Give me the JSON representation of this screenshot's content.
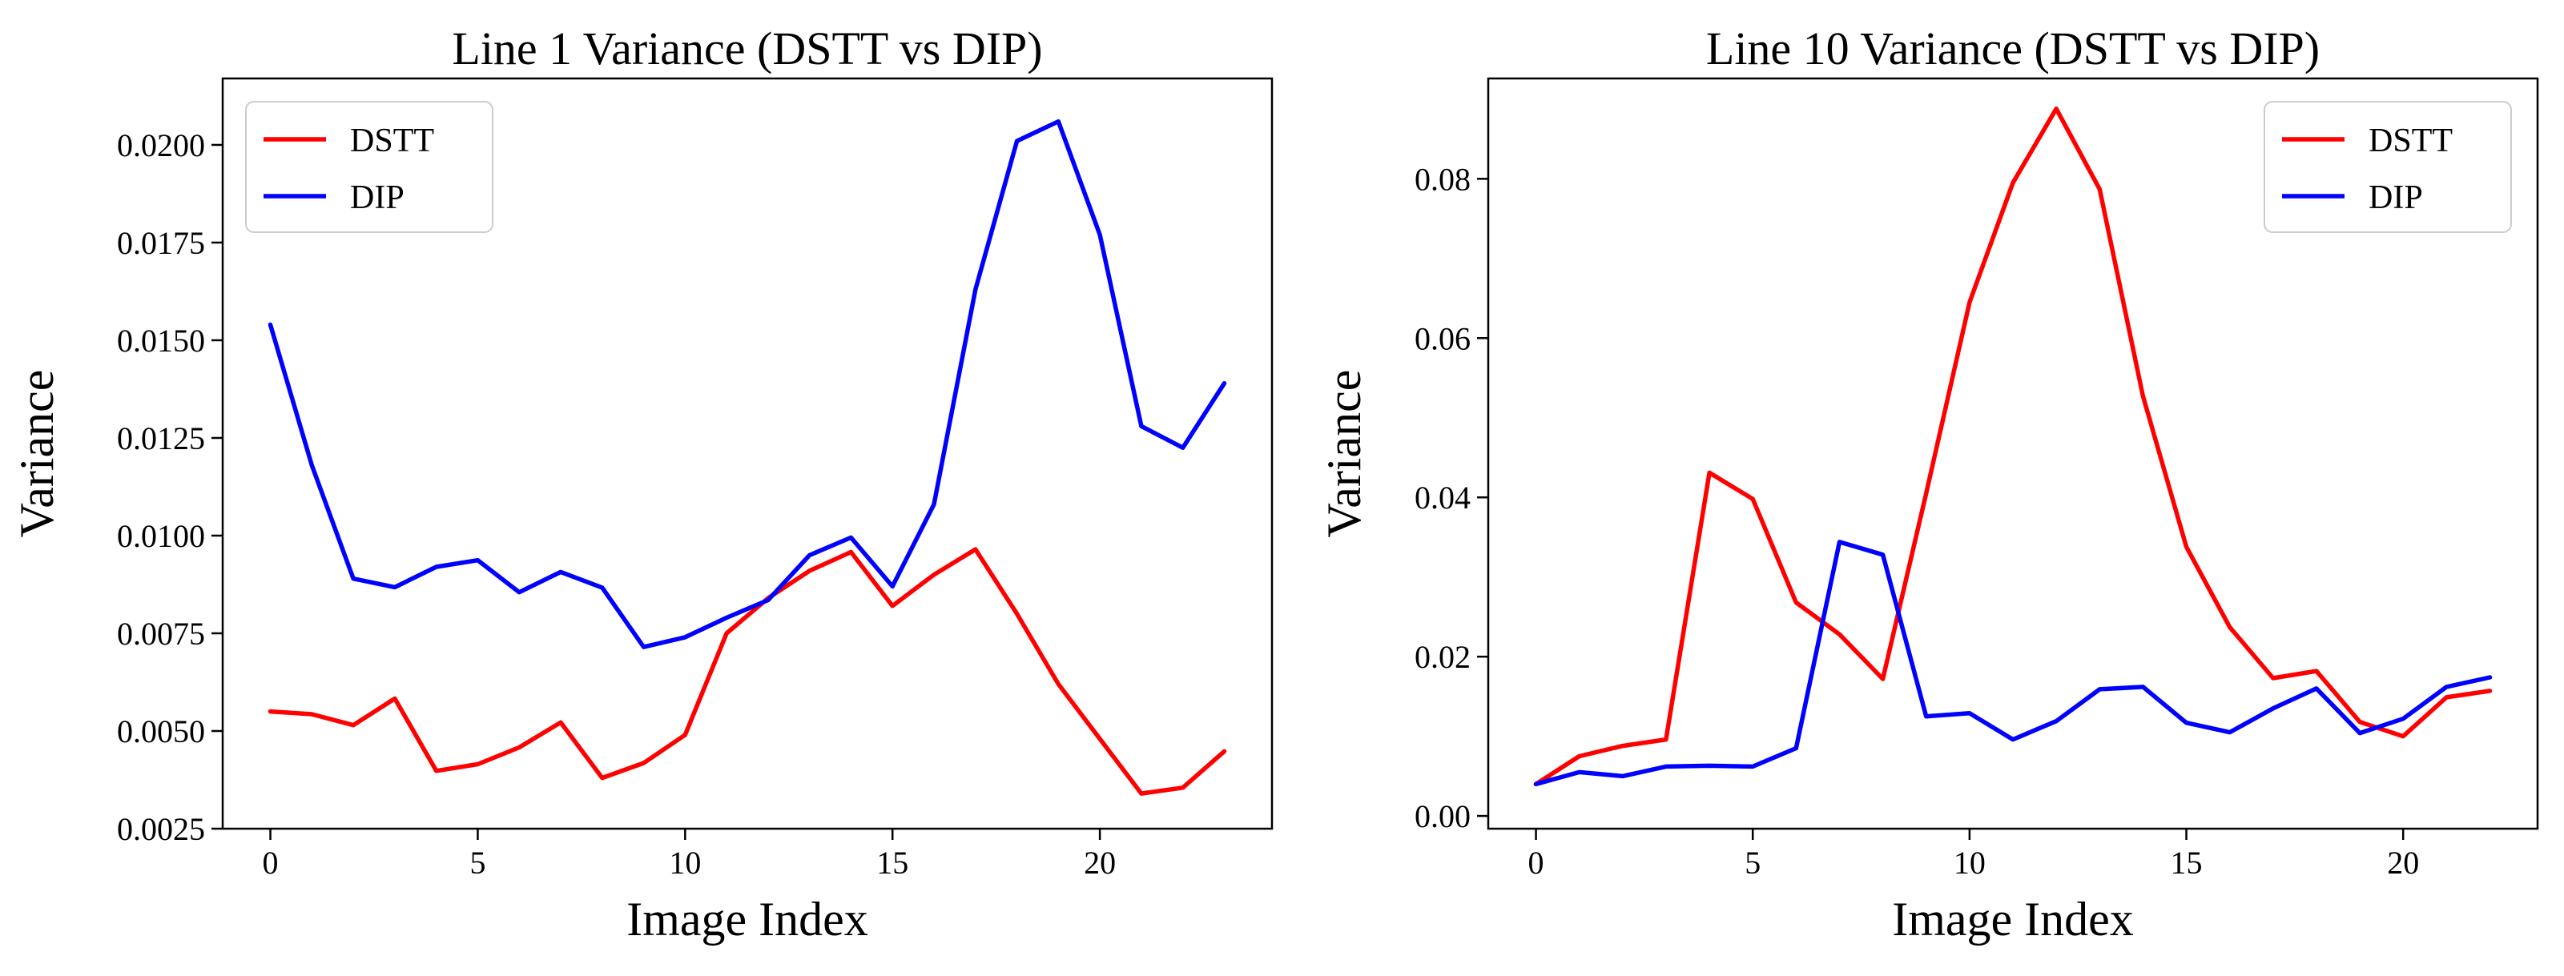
{
  "chart_data": [
    {
      "type": "line",
      "title": "Line 1 Variance (DSTT vs DIP)",
      "xlabel": "Image Index",
      "ylabel": "Variance",
      "xlim": [
        -1.15,
        24.15
      ],
      "ylim": [
        0.0025,
        0.0217
      ],
      "xticks": [
        0,
        5,
        10,
        15,
        20
      ],
      "xtick_labels": [
        "0",
        "5",
        "10",
        "15",
        "20"
      ],
      "yticks": [
        0.0025,
        0.005,
        0.0075,
        0.01,
        0.0125,
        0.015,
        0.0175,
        0.02
      ],
      "ytick_labels": [
        "0.0025",
        "0.0050",
        "0.0075",
        "0.0100",
        "0.0125",
        "0.0150",
        "0.0175",
        "0.0200"
      ],
      "legend_position": "top-left",
      "grid": false,
      "x": [
        0,
        1,
        2,
        3,
        4,
        5,
        6,
        7,
        8,
        9,
        10,
        11,
        12,
        13,
        14,
        15,
        16,
        17,
        18,
        19,
        20,
        21,
        22,
        23
      ],
      "series": [
        {
          "name": "DSTT",
          "color": "#ff0000",
          "values": [
            0.0055,
            0.00543,
            0.00515,
            0.00583,
            0.00398,
            0.00415,
            0.00458,
            0.00522,
            0.0038,
            0.00418,
            0.0049,
            0.0075,
            0.0084,
            0.0091,
            0.00958,
            0.0082,
            0.009,
            0.00965,
            0.008,
            0.0062,
            0.0048,
            0.0034,
            0.00355,
            0.00448
          ]
        },
        {
          "name": "DIP",
          "color": "#0000ff",
          "values": [
            0.0154,
            0.0118,
            0.0089,
            0.00868,
            0.0092,
            0.00937,
            0.00855,
            0.00907,
            0.00867,
            0.00715,
            0.0074,
            0.0079,
            0.00835,
            0.0095,
            0.00995,
            0.0087,
            0.0108,
            0.0163,
            0.0201,
            0.0206,
            0.0177,
            0.0128,
            0.01225,
            0.0139
          ]
        }
      ]
    },
    {
      "type": "line",
      "title": "Line 10 Variance (DSTT vs DIP)",
      "xlabel": "Image Index",
      "ylabel": "Variance",
      "xlim": [
        -1.1,
        23.1
      ],
      "ylim": [
        -0.0016,
        0.0926
      ],
      "xticks": [
        0,
        5,
        10,
        15,
        20
      ],
      "xtick_labels": [
        "0",
        "5",
        "10",
        "15",
        "20"
      ],
      "yticks": [
        0,
        0.02,
        0.04,
        0.06,
        0.08
      ],
      "ytick_labels": [
        "0.00",
        "0.02",
        "0.04",
        "0.06",
        "0.08"
      ],
      "legend_position": "top-right",
      "grid": false,
      "x": [
        0,
        1,
        2,
        3,
        4,
        5,
        6,
        7,
        8,
        9,
        10,
        11,
        12,
        13,
        14,
        15,
        16,
        17,
        18,
        19,
        20,
        21,
        22
      ],
      "series": [
        {
          "name": "DSTT",
          "color": "#ff0000",
          "values": [
            0.004,
            0.0075,
            0.0088,
            0.0096,
            0.0431,
            0.0398,
            0.0268,
            0.0228,
            0.0172,
            0.0405,
            0.0645,
            0.0795,
            0.0888,
            0.0787,
            0.0527,
            0.0338,
            0.0237,
            0.0173,
            0.0182,
            0.0118,
            0.01,
            0.0149,
            0.0157
          ]
        },
        {
          "name": "DIP",
          "color": "#0000ff",
          "values": [
            0.004,
            0.0055,
            0.005,
            0.0062,
            0.0063,
            0.0062,
            0.0085,
            0.0344,
            0.0328,
            0.0125,
            0.0129,
            0.0096,
            0.0119,
            0.0159,
            0.0162,
            0.0117,
            0.0105,
            0.0135,
            0.016,
            0.0104,
            0.0122,
            0.0162,
            0.0174
          ]
        }
      ]
    }
  ]
}
